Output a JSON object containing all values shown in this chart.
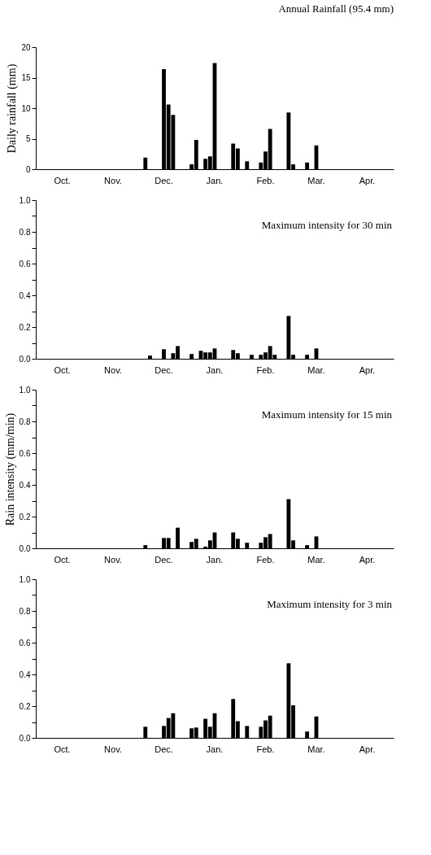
{
  "chart_data": [
    {
      "type": "bar",
      "title": "Annual Rainfall (95.4 mm)",
      "ylabel": "Daily rainfall (mm)",
      "grid": false,
      "categories": [
        null,
        null,
        null,
        null,
        null,
        "Oct.",
        null,
        null,
        null,
        null,
        null,
        null,
        null,
        null,
        null,
        null,
        "Nov.",
        null,
        null,
        null,
        null,
        null,
        null,
        null,
        null,
        null,
        null,
        "Dec.",
        null,
        null,
        null,
        null,
        null,
        null,
        null,
        null,
        null,
        null,
        "Jan.",
        null,
        null,
        null,
        null,
        null,
        null,
        null,
        null,
        null,
        null,
        "Feb.",
        null,
        null,
        null,
        null,
        null,
        null,
        null,
        null,
        null,
        null,
        "Mar.",
        null,
        null,
        null,
        null,
        null,
        null,
        null,
        null,
        null,
        null,
        "Apr.",
        null,
        null,
        null,
        null,
        null
      ],
      "series": [
        {
          "color": "#000000",
          "values": [
            null,
            null,
            null,
            null,
            null,
            null,
            null,
            null,
            null,
            null,
            null,
            null,
            null,
            null,
            null,
            null,
            null,
            null,
            null,
            null,
            null,
            null,
            null,
            1.9,
            null,
            null,
            null,
            16.4,
            10.6,
            8.9,
            null,
            null,
            null,
            0.8,
            4.8,
            null,
            1.7,
            2.1,
            17.4,
            null,
            null,
            null,
            4.2,
            3.4,
            null,
            1.3,
            null,
            null,
            1.1,
            2.9,
            6.6,
            null,
            null,
            null,
            9.3,
            0.8,
            null,
            null,
            1.1,
            null,
            3.9,
            null,
            null,
            null,
            null,
            null,
            null,
            null,
            null,
            null,
            null,
            null,
            null,
            null,
            null,
            null,
            null
          ]
        }
      ],
      "ylim": [
        0,
        20
      ],
      "yticks": [
        0,
        5,
        10,
        15,
        20
      ]
    },
    {
      "type": "bar",
      "annotations": [
        "Maximum intensity for 30 min"
      ],
      "grid": false,
      "categories": [
        null,
        null,
        null,
        null,
        null,
        "Oct.",
        null,
        null,
        null,
        null,
        null,
        null,
        null,
        null,
        null,
        null,
        "Nov.",
        null,
        null,
        null,
        null,
        null,
        null,
        null,
        null,
        null,
        null,
        "Dec.",
        null,
        null,
        null,
        null,
        null,
        null,
        null,
        null,
        null,
        null,
        "Jan.",
        null,
        null,
        null,
        null,
        null,
        null,
        null,
        null,
        null,
        null,
        "Feb.",
        null,
        null,
        null,
        null,
        null,
        null,
        null,
        null,
        null,
        null,
        "Mar.",
        null,
        null,
        null,
        null,
        null,
        null,
        null,
        null,
        null,
        null,
        "Apr.",
        null,
        null,
        null,
        null,
        null
      ],
      "series": [
        {
          "color": "#000000",
          "values": [
            null,
            null,
            null,
            null,
            null,
            null,
            null,
            null,
            null,
            null,
            null,
            null,
            null,
            null,
            null,
            null,
            null,
            null,
            null,
            null,
            null,
            null,
            null,
            null,
            0.02,
            null,
            null,
            0.06,
            null,
            0.035,
            0.08,
            null,
            null,
            0.03,
            null,
            0.05,
            0.04,
            0.04,
            0.065,
            null,
            null,
            null,
            0.055,
            0.035,
            null,
            null,
            0.025,
            null,
            0.025,
            0.04,
            0.08,
            0.025,
            null,
            null,
            0.27,
            0.025,
            null,
            null,
            0.025,
            null,
            0.065,
            null,
            null,
            null,
            null,
            null,
            null,
            null,
            null,
            null,
            null,
            null,
            null,
            null,
            null,
            null,
            null
          ]
        }
      ],
      "ylim": [
        0,
        1
      ],
      "yticks": [
        {
          "value": 0,
          "label": "0.0"
        },
        {
          "value": 0.1,
          "label": null
        },
        0.2,
        {
          "value": 0.3,
          "label": null
        },
        0.4,
        {
          "value": 0.5,
          "label": null
        },
        0.6,
        {
          "value": 0.7,
          "label": null
        },
        0.8,
        {
          "value": 0.9,
          "label": null
        },
        {
          "value": 1,
          "label": "1.0"
        }
      ]
    },
    {
      "type": "bar",
      "annotations": [
        "Maximum intensity for 15 min"
      ],
      "ylabel": "Rain intensity (mm/min)",
      "grid": false,
      "categories": [
        null,
        null,
        null,
        null,
        null,
        "Oct.",
        null,
        null,
        null,
        null,
        null,
        null,
        null,
        null,
        null,
        null,
        "Nov.",
        null,
        null,
        null,
        null,
        null,
        null,
        null,
        null,
        null,
        null,
        "Dec.",
        null,
        null,
        null,
        null,
        null,
        null,
        null,
        null,
        null,
        null,
        "Jan.",
        null,
        null,
        null,
        null,
        null,
        null,
        null,
        null,
        null,
        null,
        "Feb.",
        null,
        null,
        null,
        null,
        null,
        null,
        null,
        null,
        null,
        null,
        "Mar.",
        null,
        null,
        null,
        null,
        null,
        null,
        null,
        null,
        null,
        null,
        "Apr.",
        null,
        null,
        null,
        null,
        null
      ],
      "series": [
        {
          "color": "#000000",
          "values": [
            null,
            null,
            null,
            null,
            null,
            null,
            null,
            null,
            null,
            null,
            null,
            null,
            null,
            null,
            null,
            null,
            null,
            null,
            null,
            null,
            null,
            null,
            null,
            0.02,
            null,
            null,
            null,
            0.065,
            0.065,
            null,
            0.13,
            null,
            null,
            0.04,
            0.06,
            null,
            0.01,
            0.05,
            0.1,
            null,
            null,
            null,
            0.1,
            0.06,
            null,
            0.035,
            null,
            null,
            0.035,
            0.07,
            0.09,
            null,
            null,
            null,
            0.31,
            0.05,
            null,
            null,
            0.02,
            null,
            0.075,
            null,
            null,
            null,
            null,
            null,
            null,
            null,
            null,
            null,
            null,
            null,
            null,
            null,
            null,
            null,
            null
          ]
        }
      ],
      "ylim": [
        0,
        1
      ],
      "yticks": [
        {
          "value": 0,
          "label": "0.0"
        },
        {
          "value": 0.1,
          "label": null
        },
        0.2,
        {
          "value": 0.3,
          "label": null
        },
        0.4,
        {
          "value": 0.5,
          "label": null
        },
        0.6,
        {
          "value": 0.7,
          "label": null
        },
        0.8,
        {
          "value": 0.9,
          "label": null
        },
        {
          "value": 1,
          "label": "1.0"
        }
      ]
    },
    {
      "type": "bar",
      "annotations": [
        "Maximum intensity for 3 min"
      ],
      "grid": false,
      "categories": [
        null,
        null,
        null,
        null,
        null,
        "Oct.",
        null,
        null,
        null,
        null,
        null,
        null,
        null,
        null,
        null,
        null,
        "Nov.",
        null,
        null,
        null,
        null,
        null,
        null,
        null,
        null,
        null,
        null,
        "Dec.",
        null,
        null,
        null,
        null,
        null,
        null,
        null,
        null,
        null,
        null,
        "Jan.",
        null,
        null,
        null,
        null,
        null,
        null,
        null,
        null,
        null,
        null,
        "Feb.",
        null,
        null,
        null,
        null,
        null,
        null,
        null,
        null,
        null,
        null,
        "Mar.",
        null,
        null,
        null,
        null,
        null,
        null,
        null,
        null,
        null,
        null,
        "Apr.",
        null,
        null,
        null,
        null,
        null
      ],
      "series": [
        {
          "color": "#000000",
          "values": [
            null,
            null,
            null,
            null,
            null,
            null,
            null,
            null,
            null,
            null,
            null,
            null,
            null,
            null,
            null,
            null,
            null,
            null,
            null,
            null,
            null,
            null,
            null,
            0.07,
            null,
            null,
            null,
            0.075,
            0.125,
            0.155,
            null,
            null,
            null,
            0.06,
            0.065,
            null,
            0.12,
            0.07,
            0.155,
            null,
            null,
            null,
            0.245,
            0.105,
            null,
            0.075,
            null,
            null,
            0.07,
            0.11,
            0.14,
            null,
            null,
            null,
            0.47,
            0.205,
            null,
            null,
            0.04,
            null,
            0.135,
            null,
            null,
            null,
            null,
            null,
            null,
            null,
            null,
            null,
            null,
            null,
            null,
            null,
            null,
            null,
            null
          ]
        }
      ],
      "ylim": [
        0,
        1
      ],
      "yticks": [
        {
          "value": 0,
          "label": "0.0"
        },
        {
          "value": 0.1,
          "label": null
        },
        0.2,
        {
          "value": 0.3,
          "label": null
        },
        0.4,
        {
          "value": 0.5,
          "label": null
        },
        0.6,
        {
          "value": 0.7,
          "label": null
        },
        0.8,
        {
          "value": 0.9,
          "label": null
        },
        {
          "value": 1,
          "label": "1.0"
        }
      ]
    }
  ]
}
